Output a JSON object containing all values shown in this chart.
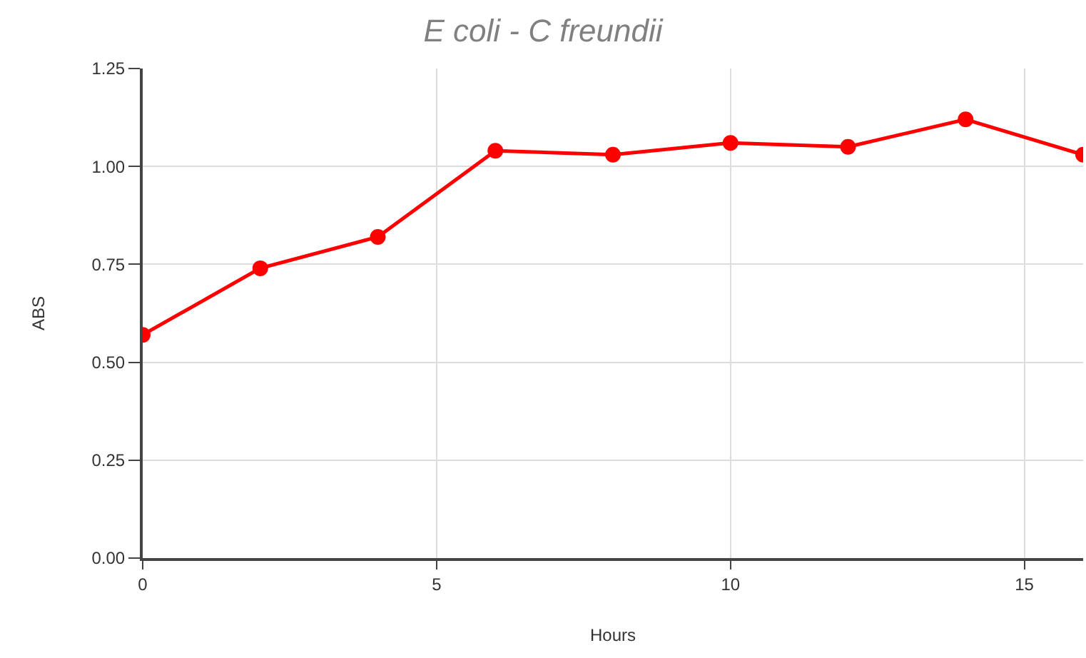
{
  "chart_data": {
    "type": "line",
    "title": "E coli - C freundii",
    "xlabel": "Hours",
    "ylabel": "ABS",
    "x": [
      0,
      2,
      4,
      6,
      8,
      10,
      12,
      14,
      16
    ],
    "series": [
      {
        "color": "#ff0000",
        "values": [
          0.57,
          0.74,
          0.82,
          1.04,
          1.03,
          1.06,
          1.05,
          1.12,
          1.03
        ]
      }
    ],
    "xlim": [
      0,
      16
    ],
    "xticks": [
      0,
      5,
      10,
      15
    ],
    "ylim": [
      0,
      1.25
    ],
    "yticks": [
      {
        "value": 0,
        "label": "0.00"
      },
      {
        "value": 0.25,
        "label": "0.25"
      },
      {
        "value": 0.5,
        "label": "0.50"
      },
      {
        "value": 0.75,
        "label": "0.75"
      },
      {
        "value": 1,
        "label": "1.00"
      },
      {
        "value": 1.25,
        "label": "1.25"
      }
    ],
    "grid": true,
    "marker": "circle",
    "line_style": "solid",
    "legend": false
  }
}
